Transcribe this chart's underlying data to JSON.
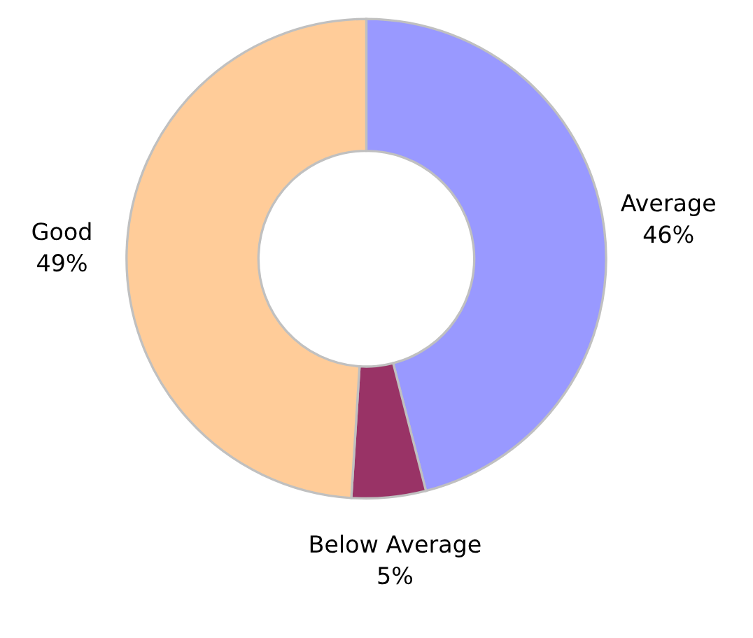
{
  "chart_data": {
    "type": "donut",
    "categories": [
      "Average",
      "Below Average",
      "Good"
    ],
    "values": [
      46,
      5,
      49
    ],
    "value_labels": [
      "46%",
      "5%",
      "49%"
    ],
    "colors": [
      "#9999ff",
      "#993366",
      "#ffcc99"
    ]
  }
}
